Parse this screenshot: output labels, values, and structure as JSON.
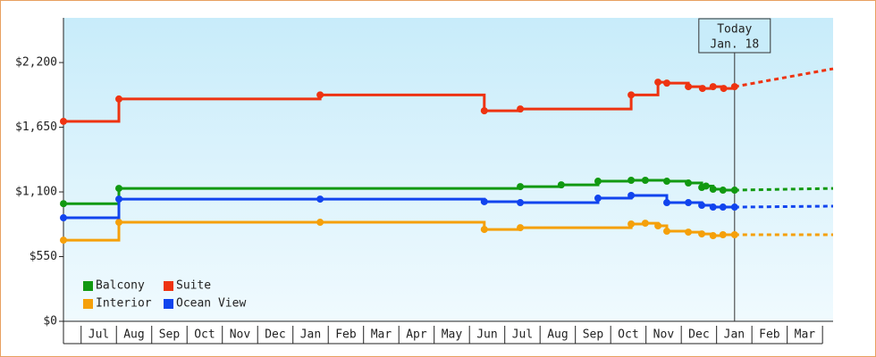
{
  "chart_data": {
    "type": "line",
    "step": true,
    "xlim": [
      -0.5,
      21.3
    ],
    "xticks": [
      {
        "value": 0.5,
        "label": "Jul"
      },
      {
        "value": 1.5,
        "label": "Aug"
      },
      {
        "value": 2.5,
        "label": "Sep"
      },
      {
        "value": 3.5,
        "label": "Oct"
      },
      {
        "value": 4.5,
        "label": "Nov"
      },
      {
        "value": 5.5,
        "label": "Dec"
      },
      {
        "value": 6.5,
        "label": "Jan"
      },
      {
        "value": 7.5,
        "label": "Feb"
      },
      {
        "value": 8.5,
        "label": "Mar"
      },
      {
        "value": 9.5,
        "label": "Apr"
      },
      {
        "value": 10.5,
        "label": "May"
      },
      {
        "value": 11.5,
        "label": "Jun"
      },
      {
        "value": 12.5,
        "label": "Jul"
      },
      {
        "value": 13.5,
        "label": "Aug"
      },
      {
        "value": 14.5,
        "label": "Sep"
      },
      {
        "value": 15.5,
        "label": "Oct"
      },
      {
        "value": 16.5,
        "label": "Nov"
      },
      {
        "value": 17.5,
        "label": "Dec"
      },
      {
        "value": 18.5,
        "label": "Jan"
      },
      {
        "value": 19.5,
        "label": "Feb"
      },
      {
        "value": 20.5,
        "label": "Mar"
      }
    ],
    "ylim": [
      0,
      2580
    ],
    "yticks": [
      {
        "value": 0,
        "label": "$0"
      },
      {
        "value": 550,
        "label": "$550"
      },
      {
        "value": 1100,
        "label": "$1,100"
      },
      {
        "value": 1650,
        "label": "$1,650"
      },
      {
        "value": 2200,
        "label": "$2,200"
      }
    ],
    "today": {
      "x": 18.51,
      "label": "Today",
      "date": "Jan. 18"
    },
    "forecast_x": [
      18.51,
      21.3
    ],
    "legend": "lower-left",
    "series": [
      {
        "name": "Balcony",
        "color": "#119911",
        "x": [
          -0.5,
          1.07,
          12.44,
          13.6,
          14.64,
          15.58,
          15.98,
          16.59,
          17.2,
          17.58,
          17.7,
          17.9,
          18.18,
          18.51
        ],
        "values": [
          1000,
          1130,
          1145,
          1160,
          1191,
          1199,
          1199,
          1191,
          1176,
          1138,
          1150,
          1123,
          1115,
          1115
        ],
        "forecast_values": [
          1115,
          1130
        ]
      },
      {
        "name": "Suite",
        "color": "#ee3311",
        "x": [
          -0.5,
          1.07,
          6.77,
          11.42,
          12.44,
          15.58,
          16.34,
          16.59,
          17.2,
          17.6,
          17.9,
          18.2,
          18.51
        ],
        "values": [
          1700,
          1890,
          1925,
          1790,
          1805,
          1925,
          2033,
          2025,
          1995,
          1980,
          1995,
          1980,
          1995
        ],
        "forecast_values": [
          1995,
          2147
        ]
      },
      {
        "name": "Interior",
        "color": "#f5a00a",
        "x": [
          -0.5,
          1.07,
          6.77,
          11.42,
          12.44,
          15.58,
          15.98,
          16.34,
          16.59,
          17.2,
          17.58,
          17.9,
          18.18,
          18.51
        ],
        "values": [
          690,
          842,
          842,
          781,
          796,
          827,
          834,
          812,
          766,
          758,
          743,
          728,
          736,
          736
        ],
        "forecast_values": [
          736,
          736
        ]
      },
      {
        "name": "Ocean View",
        "color": "#1144ee",
        "x": [
          -0.5,
          1.07,
          6.77,
          11.42,
          12.44,
          14.64,
          15.58,
          16.59,
          17.2,
          17.58,
          17.9,
          18.18,
          18.51
        ],
        "values": [
          880,
          1039,
          1039,
          1017,
          1009,
          1047,
          1070,
          1009,
          1009,
          986,
          971,
          971,
          971
        ],
        "forecast_values": [
          971,
          979
        ]
      }
    ]
  }
}
